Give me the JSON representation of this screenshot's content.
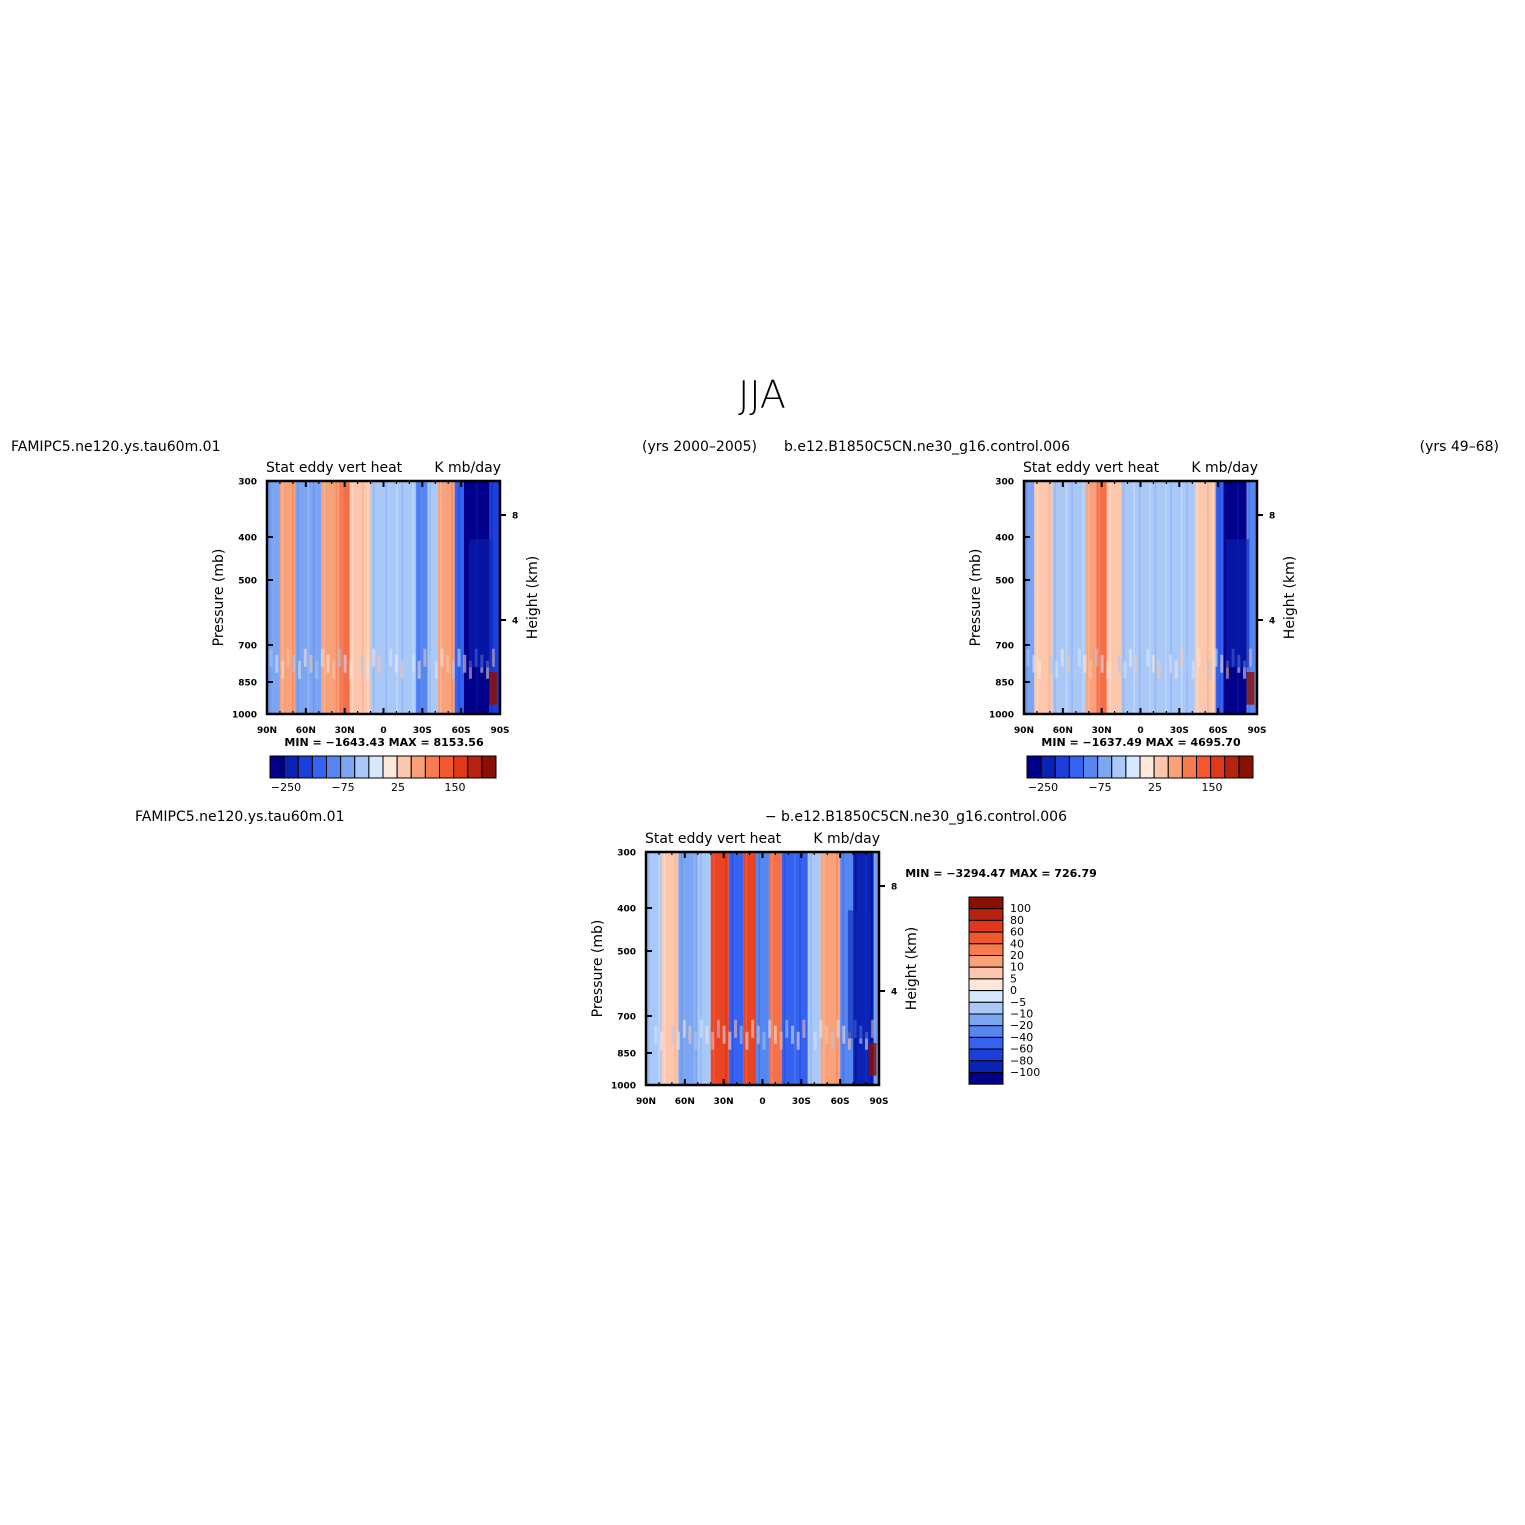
{
  "page_title": "JJA",
  "chart_data": [
    {
      "id": "panel_a",
      "type": "heatmap",
      "run_name": "FAMIPC5.ne120.ys.tau60m.01",
      "years": "(yrs 2000–2005)",
      "title_left": "Stat eddy vert heat",
      "title_right": "K mb/day",
      "ylabel": "Pressure (mb)",
      "ylabel_right": "Height (km)",
      "x_ticks": [
        "90N",
        "60N",
        "30N",
        "0",
        "30S",
        "60S",
        "90S"
      ],
      "x_range": [
        90,
        -90
      ],
      "y_ticks": [
        "300",
        "400",
        "500",
        "700",
        "850",
        "1000"
      ],
      "y_range": [
        300,
        1000
      ],
      "height_ticks": [
        "8",
        "4"
      ],
      "min_max": "MIN = −1643.43   MAX = 8153.56",
      "colorbar_labels": [
        "−250",
        "−75",
        "25",
        "150"
      ],
      "columns": [
        {
          "lat": [
            90,
            80
          ],
          "v": -3
        },
        {
          "lat": [
            80,
            68
          ],
          "v": 2
        },
        {
          "lat": [
            68,
            48
          ],
          "v": -3
        },
        {
          "lat": [
            48,
            34
          ],
          "v": 2
        },
        {
          "lat": [
            34,
            26
          ],
          "v": 3
        },
        {
          "lat": [
            26,
            10
          ],
          "v": 1
        },
        {
          "lat": [
            10,
            0
          ],
          "v": -2
        },
        {
          "lat": [
            0,
            -25
          ],
          "v": -2
        },
        {
          "lat": [
            -25,
            -34
          ],
          "v": -4
        },
        {
          "lat": [
            -34,
            -42
          ],
          "v": -2
        },
        {
          "lat": [
            -42,
            -55
          ],
          "v": 2
        },
        {
          "lat": [
            -55,
            -62
          ],
          "v": -5
        },
        {
          "lat": [
            -62,
            -82
          ],
          "v": -8
        },
        {
          "lat": [
            -82,
            -90
          ],
          "v": -6
        }
      ]
    },
    {
      "id": "panel_b",
      "type": "heatmap",
      "run_name": "b.e12.B1850C5CN.ne30_g16.control.006",
      "years": "(yrs 49–68)",
      "title_left": "Stat eddy vert heat",
      "title_right": "K mb/day",
      "ylabel": "Pressure (mb)",
      "ylabel_right": "Height (km)",
      "x_ticks": [
        "90N",
        "60N",
        "30N",
        "0",
        "30S",
        "60S",
        "90S"
      ],
      "x_range": [
        90,
        -90
      ],
      "y_ticks": [
        "300",
        "400",
        "500",
        "700",
        "850",
        "1000"
      ],
      "y_range": [
        300,
        1000
      ],
      "height_ticks": [
        "8",
        "4"
      ],
      "min_max": "MIN = −1637.49   MAX = 4695.70",
      "colorbar_labels": [
        "−250",
        "−75",
        "25",
        "150"
      ],
      "columns": [
        {
          "lat": [
            90,
            82
          ],
          "v": -3
        },
        {
          "lat": [
            82,
            68
          ],
          "v": 1
        },
        {
          "lat": [
            68,
            42
          ],
          "v": -2
        },
        {
          "lat": [
            42,
            34
          ],
          "v": 2
        },
        {
          "lat": [
            34,
            26
          ],
          "v": 3
        },
        {
          "lat": [
            26,
            15
          ],
          "v": 1
        },
        {
          "lat": [
            15,
            -42
          ],
          "v": -2
        },
        {
          "lat": [
            -42,
            -58
          ],
          "v": 1
        },
        {
          "lat": [
            -58,
            -64
          ],
          "v": -5
        },
        {
          "lat": [
            -64,
            -82
          ],
          "v": -8
        },
        {
          "lat": [
            -82,
            -90
          ],
          "v": -4
        }
      ]
    },
    {
      "id": "panel_diff",
      "type": "heatmap",
      "run_name": "FAMIPC5.ne120.ys.tau60m.01",
      "run_name_2": "− b.e12.B1850C5CN.ne30_g16.control.006",
      "title_left": "Stat eddy vert heat",
      "title_right": "K mb/day",
      "ylabel": "Pressure (mb)",
      "ylabel_right": "Height (km)",
      "x_ticks": [
        "90N",
        "60N",
        "30N",
        "0",
        "30S",
        "60S",
        "90S"
      ],
      "x_range": [
        90,
        -90
      ],
      "y_ticks": [
        "300",
        "400",
        "500",
        "700",
        "850",
        "1000"
      ],
      "y_range": [
        300,
        1000
      ],
      "height_ticks": [
        "8",
        "4"
      ],
      "min_max": "MIN = −3294.47   MAX = 726.79",
      "colorbar_labels": [
        "100",
        "80",
        "60",
        "40",
        "20",
        "10",
        "5",
        "0",
        "−5",
        "−10",
        "−20",
        "−40",
        "−60",
        "−80",
        "−100"
      ],
      "columns": [
        {
          "lat": [
            90,
            78
          ],
          "v": -2
        },
        {
          "lat": [
            78,
            65
          ],
          "v": 1
        },
        {
          "lat": [
            65,
            50
          ],
          "v": -3
        },
        {
          "lat": [
            50,
            40
          ],
          "v": -2
        },
        {
          "lat": [
            40,
            26
          ],
          "v": 4
        },
        {
          "lat": [
            26,
            15
          ],
          "v": -5
        },
        {
          "lat": [
            15,
            5
          ],
          "v": 4
        },
        {
          "lat": [
            5,
            -5
          ],
          "v": -4
        },
        {
          "lat": [
            -5,
            -15
          ],
          "v": 3
        },
        {
          "lat": [
            -15,
            -35
          ],
          "v": -5
        },
        {
          "lat": [
            -35,
            -45
          ],
          "v": -2
        },
        {
          "lat": [
            -45,
            -60
          ],
          "v": 2
        },
        {
          "lat": [
            -60,
            -70
          ],
          "v": -4
        },
        {
          "lat": [
            -70,
            -86
          ],
          "v": -7
        },
        {
          "lat": [
            -86,
            -90
          ],
          "v": -3
        }
      ]
    }
  ],
  "palette": {
    "seq14": [
      "#00008b",
      "#0a23b4",
      "#1c3fdc",
      "#3563f0",
      "#5687f0",
      "#7ca5f2",
      "#a9c8f7",
      "#d6e8fd",
      "#fce8da",
      "#fcc7ac",
      "#f9a27a",
      "#f5704a",
      "#ea4424",
      "#c92a10",
      "#8b1004"
    ],
    "diff_colorbar": [
      "#8b1004",
      "#b8230f",
      "#e2381a",
      "#f2582e",
      "#f77b4f",
      "#f9a27a",
      "#fcc7ac",
      "#fce8da",
      "#d6e8fd",
      "#a9c8f7",
      "#7ca5f2",
      "#5687f0",
      "#3563f0",
      "#1c3fdc",
      "#0a23b4",
      "#00008b"
    ]
  }
}
